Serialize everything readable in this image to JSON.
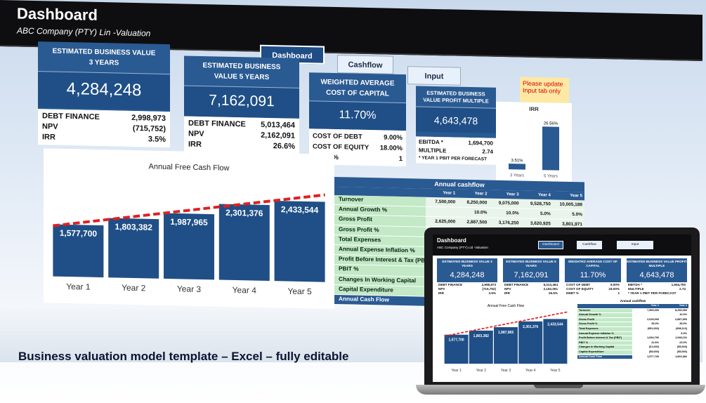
{
  "header": {
    "title": "Dashboard",
    "subtitle": "ABC Company (PTY) Lin -Valuation"
  },
  "nav": [
    {
      "label": "Dashboard"
    },
    {
      "label": "Cashflow"
    },
    {
      "label": "Input"
    }
  ],
  "warning": "Please update Input tab only",
  "kpis": [
    {
      "title": "ESTIMATED BUSINESS VALUE 3 YEARS",
      "value": "4,284,248",
      "metrics": [
        {
          "label": "DEBT FINANCE",
          "value": "2,998,973"
        },
        {
          "label": "NPV",
          "value": "(715,752)"
        },
        {
          "label": "IRR",
          "value": "3.5%"
        }
      ]
    },
    {
      "title": "ESTIMATED BUSINESS VALUE 5 YEARS",
      "value": "7,162,091",
      "metrics": [
        {
          "label": "DEBT FINANCE",
          "value": "5,013,464"
        },
        {
          "label": "NPV",
          "value": "2,162,091"
        },
        {
          "label": "IRR",
          "value": "26.6%"
        }
      ]
    },
    {
      "title": "WEIGHTED AVERAGE COST OF CAPITAL",
      "value": "11.70%",
      "metrics": [
        {
          "label": "COST OF DEBT",
          "value": "9.00%"
        },
        {
          "label": "COST OF EQUITY",
          "value": "18.00%"
        },
        {
          "label": "DEBT %",
          "value": "1"
        }
      ]
    },
    {
      "title": "ESTIMATED BUSINESS VALUE PROFIT MULTIPLE",
      "value": "4,643,478",
      "metrics": [
        {
          "label": "EBITDA *",
          "value": "1,694,700"
        },
        {
          "label": "MULTIPLE",
          "value": "2.74"
        },
        {
          "label": "* YEAR 1 PBIT PER FORECAST",
          "value": ""
        }
      ]
    }
  ],
  "irr_chart": {
    "title": "IRR",
    "colors": {
      "bar": "#2a5a92"
    },
    "chart_data": {
      "type": "bar",
      "categories": [
        "3 Years",
        "5 Years"
      ],
      "values": [
        3.51,
        26.56
      ],
      "labels": [
        "3.51%",
        "26.56%"
      ]
    }
  },
  "cashflow_chart": {
    "title": "Annual Free Cash Flow",
    "colors": {
      "bar": "#1f4f86",
      "trend": "#e02020"
    },
    "chart_data": {
      "type": "bar",
      "categories": [
        "Year 1",
        "Year 2",
        "Year 3",
        "Year 4",
        "Year 5"
      ],
      "values": [
        1577700,
        1803382,
        1987965,
        2301376,
        2433544
      ],
      "labels": [
        "1,577,700",
        "1,803,382",
        "1,987,965",
        "2,301,376",
        "2,433,544"
      ],
      "ylim": [
        0,
        2600000
      ]
    }
  },
  "table": {
    "title": "Annual cashflow",
    "columns": [
      "Year 1",
      "Year 2",
      "Year 3",
      "Year 4",
      "Year 5"
    ],
    "rows": [
      {
        "label": "Turnover",
        "values": [
          "7,500,000",
          "8,250,000",
          "9,075,000",
          "9,528,750",
          "10,005,188"
        ]
      },
      {
        "label": "Annual Growth %",
        "values": [
          "",
          "10.0%",
          "10.0%",
          "5.0%",
          "5.0%"
        ]
      },
      {
        "label": "Gross Profit",
        "values": [
          "2,625,000",
          "2,887,500",
          "3,176,250",
          "3,620,925",
          "3,801,971"
        ]
      },
      {
        "label": "Gross Profit %",
        "values": [
          "35.0%",
          "35.0%",
          "35.0%",
          "38.0%",
          "38.0%"
        ]
      },
      {
        "label": "Total Expenses",
        "values": [
          "",
          "",
          "",
          "",
          ""
        ]
      },
      {
        "label": "Annual Expense Inflation %",
        "values": [
          "",
          "",
          "",
          "",
          ""
        ]
      },
      {
        "label": "Profit Before Interest & Tax (PBIT)",
        "values": [
          "",
          "",
          "",
          "",
          ""
        ]
      },
      {
        "label": "PBIT %",
        "values": [
          "",
          "",
          "",
          "",
          ""
        ]
      },
      {
        "label": "Changes In Working Capital",
        "values": [
          "",
          "",
          "",
          "",
          ""
        ]
      },
      {
        "label": "Capital Expenditure",
        "values": [
          "",
          "",
          "",
          "",
          ""
        ]
      },
      {
        "label": "Annual Cash Flow",
        "values": [
          "",
          "",
          "",
          "",
          ""
        ]
      }
    ]
  },
  "laptop": {
    "title": "Dashboard",
    "subtitle": "ABC Company (PTY) Ltd -Valuation",
    "table_rows": [
      {
        "label": "Turnover",
        "values": [
          "7,500,000",
          "8,250,000"
        ]
      },
      {
        "label": "Annual Growth %",
        "values": [
          "",
          "10.0%"
        ]
      },
      {
        "label": "Gross Profit",
        "values": [
          "2,625,000",
          "2,887,500"
        ]
      },
      {
        "label": "Gross Profit %",
        "values": [
          "35.0%",
          "35.0%"
        ]
      },
      {
        "label": "Total Expenses",
        "values": [
          "(951,000)",
          "(998,113)"
        ]
      },
      {
        "label": "Annual Expense Inflation %",
        "values": [
          "",
          "6.0%"
        ]
      },
      {
        "label": "Profit Before Interest & Tax (PBIT)",
        "values": [
          "1,694,700",
          "1,948,101"
        ]
      },
      {
        "label": "PBIT %",
        "values": [
          "22.6%",
          "23.0%"
        ]
      },
      {
        "label": "Changes In Working Capital",
        "values": [
          "(61,000)",
          "(95,000)"
        ]
      },
      {
        "label": "Capital Expenditure",
        "values": [
          "(55,000)",
          "(55,000)"
        ]
      },
      {
        "label": "Annual Cash Flow",
        "values": [
          "1,577,700",
          "1,803,382"
        ]
      }
    ]
  },
  "caption": "Business valuation model template – Excel – fully editable"
}
